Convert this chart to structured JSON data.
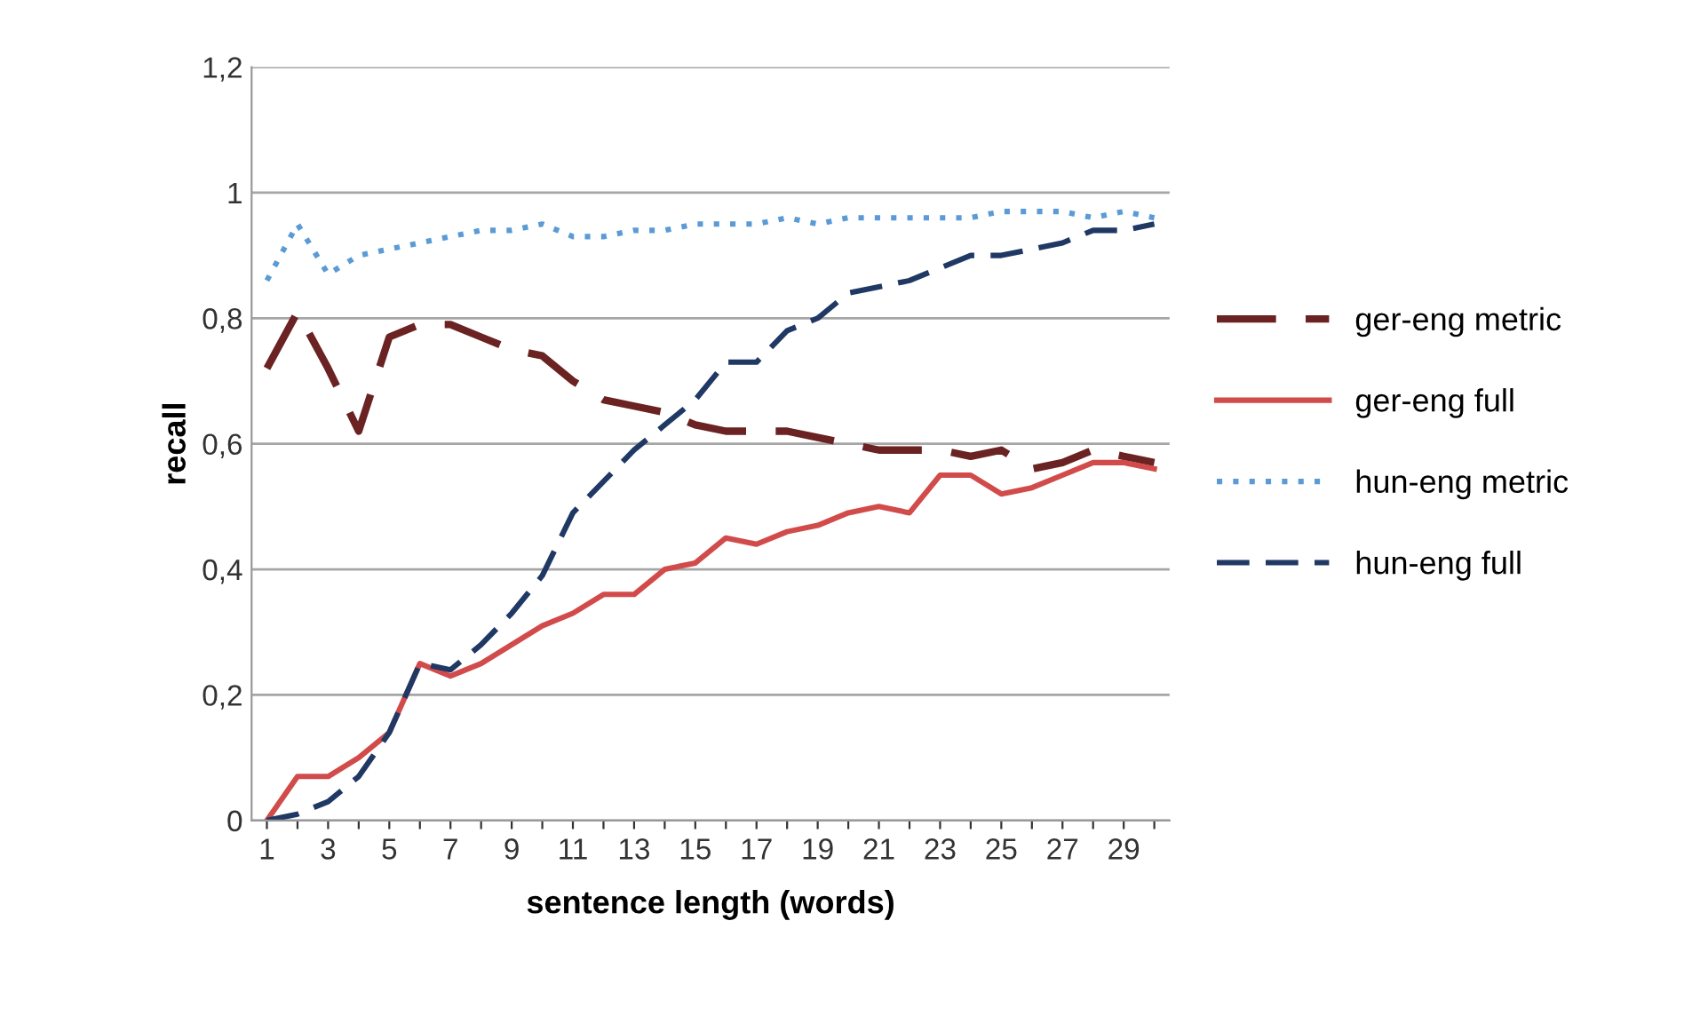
{
  "chart_data": {
    "type": "line",
    "xlabel": "sentence length (words)",
    "ylabel": "recall",
    "categories": [
      "1",
      null,
      "3",
      null,
      "5",
      null,
      "7",
      null,
      "9",
      null,
      "11",
      null,
      "13",
      null,
      "15",
      null,
      "17",
      null,
      "19",
      null,
      "21",
      null,
      "23",
      null,
      "25",
      null,
      "27",
      null,
      "29",
      null
    ],
    "series": [
      {
        "name": "ger-eng metric",
        "color": "#6b2222",
        "line_style": "dashed",
        "values": [
          0.72,
          0.81,
          0.72,
          0.62,
          0.77,
          0.79,
          0.79,
          0.77,
          0.75,
          0.74,
          0.7,
          0.67,
          0.66,
          0.65,
          0.63,
          0.62,
          0.62,
          0.62,
          0.61,
          0.6,
          0.59,
          0.59,
          0.59,
          0.58,
          0.59,
          0.56,
          0.57,
          0.59,
          0.58,
          0.57
        ]
      },
      {
        "name": "ger-eng full",
        "color": "#d24b4b",
        "line_style": "solid",
        "values": [
          0,
          0.07,
          0.07,
          0.1,
          0.14,
          0.25,
          0.23,
          0.25,
          0.28,
          0.31,
          0.33,
          0.36,
          0.36,
          0.4,
          0.41,
          0.45,
          0.44,
          0.46,
          0.47,
          0.49,
          0.5,
          0.49,
          0.55,
          0.55,
          0.52,
          0.53,
          0.55,
          0.57,
          0.57,
          0.56
        ]
      },
      {
        "name": "hun-eng metric",
        "color": "#5b9bd5",
        "line_style": "dotted",
        "values": [
          0.86,
          0.95,
          0.87,
          0.9,
          0.91,
          0.92,
          0.93,
          0.94,
          0.94,
          0.95,
          0.93,
          0.93,
          0.94,
          0.94,
          0.95,
          0.95,
          0.95,
          0.96,
          0.95,
          0.96,
          0.96,
          0.96,
          0.96,
          0.96,
          0.97,
          0.97,
          0.97,
          0.96,
          0.97,
          0.96
        ]
      },
      {
        "name": "hun-eng full",
        "color": "#1f3864",
        "line_style": "dashed",
        "values": [
          0,
          0.01,
          0.03,
          0.07,
          0.14,
          0.25,
          0.24,
          0.28,
          0.33,
          0.39,
          0.49,
          0.54,
          0.59,
          0.63,
          0.67,
          0.73,
          0.73,
          0.78,
          0.8,
          0.84,
          0.85,
          0.86,
          0.88,
          0.9,
          0.9,
          0.91,
          0.92,
          0.94,
          0.94,
          0.95
        ]
      }
    ],
    "ylim": [
      0,
      1.2
    ],
    "yticks": [
      0,
      {
        "value": 0.2,
        "label": "0,2"
      },
      {
        "value": 0.4,
        "label": "0,4"
      },
      {
        "value": 0.6,
        "label": "0,6"
      },
      {
        "value": 0.8,
        "label": "0,8"
      },
      1,
      {
        "value": 1.2,
        "label": "1,2"
      }
    ],
    "grid": "y",
    "legend": "right",
    "marker": "none"
  }
}
